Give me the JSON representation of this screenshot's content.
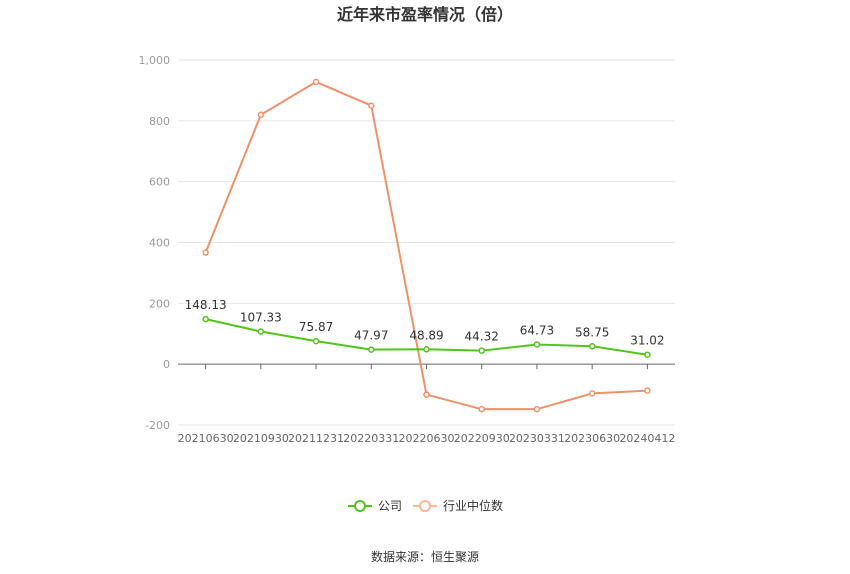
{
  "chart_data": {
    "type": "line",
    "title": "近年来市盈率情况（倍）",
    "categories": [
      "20210630",
      "20210930",
      "20211231",
      "20220331",
      "20220630",
      "20220930",
      "20230331",
      "20230630",
      "20240412"
    ],
    "series": [
      {
        "name": "公司",
        "color": "#52c41a",
        "values": [
          148.13,
          107.33,
          75.87,
          47.97,
          48.89,
          44.32,
          64.73,
          58.75,
          31.02
        ],
        "labels": [
          "148.13",
          "107.33",
          "75.87",
          "47.97",
          "48.89",
          "44.32",
          "64.73",
          "58.75",
          "31.02"
        ]
      },
      {
        "name": "行业中位数",
        "color": "#f0916a",
        "values": [
          367,
          820,
          928,
          850,
          -100,
          -148,
          -148,
          -96,
          -87
        ]
      }
    ],
    "ylim": [
      -200,
      1000
    ],
    "yticks": [
      {
        "value": 1000,
        "label": "1,000"
      },
      {
        "value": 800,
        "label": "800"
      },
      {
        "value": 600,
        "label": "600"
      },
      {
        "value": 400,
        "label": "400"
      },
      {
        "value": 200,
        "label": "200"
      },
      {
        "value": 0,
        "label": "0"
      },
      {
        "value": -200,
        "label": "-200"
      }
    ],
    "grid": true,
    "legend": "bottom-center",
    "source": "数据来源：恒生聚源"
  }
}
